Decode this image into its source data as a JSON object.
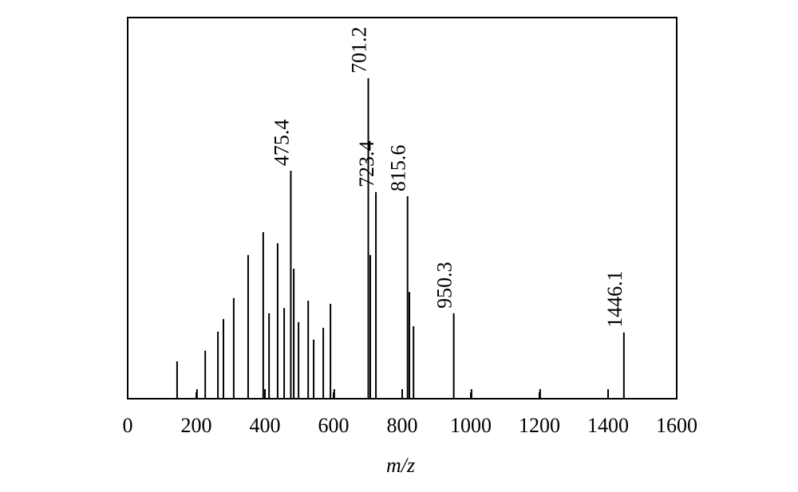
{
  "chart_data": {
    "type": "stem",
    "xlabel": "m/z",
    "x": [
      144,
      202,
      226,
      263,
      279,
      309,
      351,
      395,
      400,
      412,
      437,
      456,
      475.4,
      484,
      498,
      526,
      542,
      570,
      591,
      602,
      701.2,
      707,
      723.4,
      800,
      815.6,
      821,
      833,
      950.3,
      1002,
      1202,
      1400,
      1446.1
    ],
    "values": [
      9.8,
      2.5,
      12.6,
      17.6,
      20.9,
      26.4,
      37.7,
      43.7,
      2.5,
      22.4,
      40.8,
      23.8,
      59.8,
      34.1,
      20.1,
      25.7,
      15.5,
      18.6,
      24.9,
      2.5,
      84.1,
      37.7,
      54.2,
      2.5,
      53.1,
      28.0,
      19.0,
      22.4,
      2.5,
      2.5,
      2.5,
      17.4
    ],
    "x_labels": [
      null,
      null,
      null,
      null,
      null,
      null,
      null,
      null,
      null,
      null,
      null,
      null,
      "475.4",
      null,
      null,
      null,
      null,
      null,
      null,
      null,
      "701.2",
      null,
      "723.4",
      null,
      "815.6",
      null,
      null,
      "950.3",
      null,
      null,
      null,
      "1446.1"
    ],
    "color": "#000000",
    "xlim": [
      0,
      1600
    ],
    "xticks": [
      0,
      200,
      400,
      600,
      800,
      1000,
      1200,
      1400,
      1600
    ],
    "ylim": [
      0,
      100
    ]
  }
}
